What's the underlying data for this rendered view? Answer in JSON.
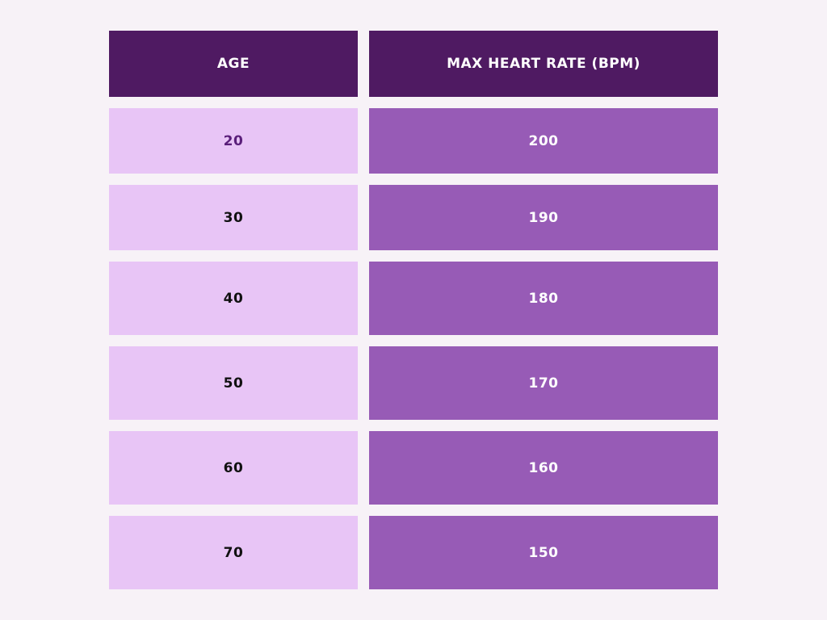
{
  "chart_data": {
    "type": "table",
    "columns": [
      "AGE",
      "MAX HEART RATE (BPM)"
    ],
    "rows": [
      [
        "20",
        "200"
      ],
      [
        "30",
        "190"
      ],
      [
        "40",
        "180"
      ],
      [
        "50",
        "170"
      ],
      [
        "60",
        "160"
      ],
      [
        "70",
        "150"
      ]
    ]
  },
  "colors": {
    "header_bg": "#4f1a62",
    "age_bg": "#e8c5f6",
    "rate_bg": "#975bb6",
    "page_bg": "#f7f2f7",
    "first_age_text": "#5a1e7a"
  }
}
